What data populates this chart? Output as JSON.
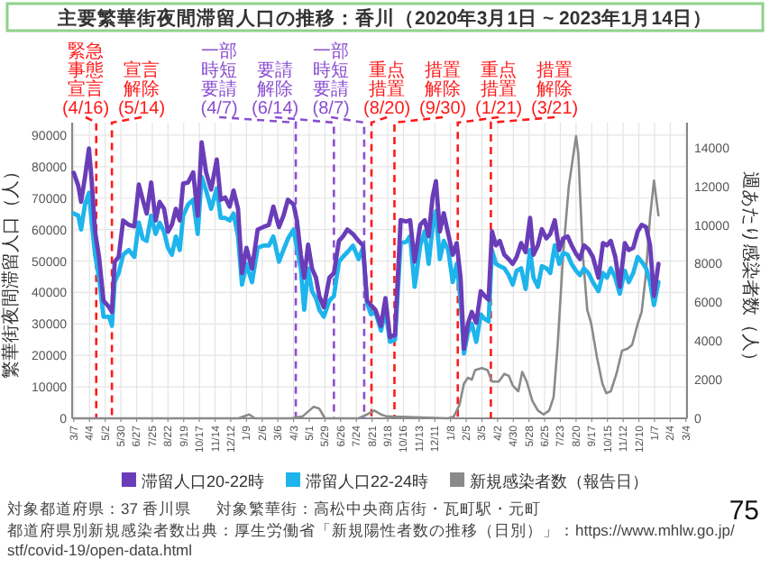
{
  "chart_data": {
    "type": "line",
    "title": "主要繁華街夜間滞留人口の推移：香川（2020年3月1日 ~ 2023年1月14日）",
    "ylabel": "繁華街夜間滞留人口（人）",
    "y2label": "週あたり感染者数（人）",
    "x": [
      "2020-03-07",
      "2020-03-15",
      "2020-03-20",
      "2020-03-27",
      "2020-04-03",
      "2020-04-08",
      "2020-04-14",
      "2020-04-21",
      "2020-04-29",
      "2020-05-09",
      "2020-05-14",
      "2020-05-19",
      "2020-05-26",
      "2020-06-03",
      "2020-06-13",
      "2020-06-23",
      "2020-07-01",
      "2020-07-08",
      "2020-07-15",
      "2020-07-23",
      "2020-07-31",
      "2020-08-07",
      "2020-08-15",
      "2020-08-22",
      "2020-08-29",
      "2020-09-05",
      "2020-09-12",
      "2020-09-18",
      "2020-09-27",
      "2020-10-06",
      "2020-10-14",
      "2020-10-21",
      "2020-10-29",
      "2020-11-07",
      "2020-11-17",
      "2020-11-24",
      "2020-12-02",
      "2020-12-10",
      "2020-12-17",
      "2020-12-25",
      "2021-01-01",
      "2021-01-09",
      "2021-01-19",
      "2021-01-29",
      "2021-02-08",
      "2021-02-18",
      "2021-02-26",
      "2021-03-08",
      "2021-03-16",
      "2021-03-24",
      "2021-04-03",
      "2021-04-09",
      "2021-04-16",
      "2021-04-22",
      "2021-04-29",
      "2021-05-06",
      "2021-05-13",
      "2021-05-19",
      "2021-05-27",
      "2021-06-06",
      "2021-06-14",
      "2021-06-23",
      "2021-06-30",
      "2021-07-08",
      "2021-07-18",
      "2021-07-28",
      "2021-08-05",
      "2021-08-12",
      "2021-08-19",
      "2021-08-27",
      "2021-09-06",
      "2021-09-14",
      "2021-09-22",
      "2021-10-01",
      "2021-10-11",
      "2021-10-21",
      "2021-10-28",
      "2021-11-05",
      "2021-11-15",
      "2021-11-23",
      "2021-11-30",
      "2021-12-07",
      "2021-12-13",
      "2021-12-20",
      "2021-12-27",
      "2022-01-04",
      "2022-01-12",
      "2022-01-19",
      "2022-01-26",
      "2022-02-01",
      "2022-02-08",
      "2022-02-15",
      "2022-02-23",
      "2022-03-03",
      "2022-03-10",
      "2022-03-17",
      "2022-03-23",
      "2022-03-30",
      "2022-04-06",
      "2022-04-14",
      "2022-04-22",
      "2022-04-29",
      "2022-05-06",
      "2022-05-14",
      "2022-05-22",
      "2022-05-30",
      "2022-06-05",
      "2022-06-13",
      "2022-06-20",
      "2022-06-28",
      "2022-07-05",
      "2022-07-13",
      "2022-07-21",
      "2022-07-28",
      "2022-08-05",
      "2022-08-12",
      "2022-08-20",
      "2022-08-27",
      "2022-09-03",
      "2022-09-11",
      "2022-09-19",
      "2022-09-29",
      "2022-10-07",
      "2022-10-14",
      "2022-10-21",
      "2022-10-29",
      "2022-11-06",
      "2022-11-15",
      "2022-11-22",
      "2022-11-30",
      "2022-12-08",
      "2022-12-15",
      "2022-12-23",
      "2022-12-30",
      "2023-01-06",
      "2023-01-14"
    ],
    "series": [
      {
        "name": "滞留人口20-22時",
        "color": "#6a3db8",
        "values": [
          78000,
          73900,
          68800,
          76800,
          85800,
          75300,
          59300,
          51300,
          37400,
          35300,
          33800,
          49800,
          51300,
          62900,
          61500,
          61000,
          74300,
          69500,
          65100,
          75000,
          62900,
          68800,
          66600,
          59300,
          61500,
          66600,
          62900,
          74600,
          75000,
          78200,
          64400,
          87700,
          78200,
          72700,
          82300,
          69500,
          70200,
          67300,
          72400,
          66600,
          46200,
          54200,
          47600,
          60000,
          60800,
          61500,
          67300,
          60800,
          64400,
          69500,
          68000,
          62900,
          52000,
          44700,
          55200,
          47600,
          44700,
          38900,
          35300,
          44700,
          46200,
          56400,
          57800,
          60000,
          58600,
          56400,
          54900,
          37400,
          36000,
          34500,
          29400,
          38200,
          25800,
          26500,
          63000,
          62600,
          63000,
          49800,
          61500,
          63000,
          57900,
          70300,
          75400,
          59400,
          65200,
          58600,
          52000,
          55700,
          44700,
          22100,
          30100,
          33800,
          30400,
          40400,
          38900,
          37700,
          59400,
          55000,
          56400,
          52000,
          50600,
          49100,
          51300,
          55700,
          52800,
          63700,
          52000,
          55000,
          60100,
          57200,
          58600,
          63000,
          53500,
          57200,
          57800,
          55000,
          52300,
          50600,
          55000,
          53800,
          51300,
          44700,
          55700,
          55000,
          56400,
          51300,
          41800,
          55700,
          53500,
          54200,
          59400,
          61500,
          60800,
          55000,
          38900,
          49100
        ]
      },
      {
        "name": "滞留人口22-24時",
        "color": "#1eb4ec",
        "values": [
          65100,
          64400,
          60000,
          68000,
          71700,
          62200,
          52000,
          44700,
          32300,
          32300,
          29400,
          43300,
          46200,
          52000,
          53500,
          51300,
          62200,
          57100,
          56400,
          64400,
          58600,
          62200,
          59300,
          54200,
          52000,
          57800,
          53500,
          64400,
          68000,
          69500,
          58600,
          76800,
          72400,
          66600,
          73100,
          63700,
          63700,
          62900,
          65100,
          57800,
          42500,
          49100,
          43300,
          54200,
          54900,
          54900,
          57800,
          49800,
          53500,
          57100,
          60000,
          54200,
          47600,
          34500,
          47600,
          40400,
          38200,
          34500,
          32300,
          37400,
          38900,
          49800,
          51300,
          52800,
          54900,
          50600,
          54200,
          36700,
          33100,
          33800,
          27900,
          34500,
          24300,
          25000,
          55700,
          56100,
          57900,
          41800,
          55000,
          59400,
          49100,
          60800,
          65900,
          50600,
          56400,
          53500,
          43300,
          49100,
          37400,
          20600,
          27200,
          30100,
          24300,
          33000,
          31600,
          30800,
          53500,
          49100,
          48400,
          47700,
          45500,
          42500,
          46900,
          47700,
          41100,
          53500,
          44700,
          41800,
          48400,
          47700,
          46200,
          55000,
          49100,
          52600,
          52000,
          49100,
          46900,
          45500,
          47700,
          46200,
          43300,
          40400,
          46200,
          44700,
          47700,
          44700,
          39600,
          46900,
          43300,
          46200,
          51300,
          49800,
          47700,
          43300,
          36000,
          43300
        ]
      },
      {
        "name": "新規感染者数（報告日）",
        "color": "#8a8a8a",
        "axis": "y2",
        "x": [
          "2020-03-07",
          "2020-12-26",
          "2021-01-14",
          "2021-01-24",
          "2021-03-30",
          "2021-04-19",
          "2021-05-09",
          "2021-05-19",
          "2021-05-29",
          "2021-07-28",
          "2021-08-12",
          "2021-08-25",
          "2021-09-06",
          "2021-09-16",
          "2022-01-04",
          "2022-01-14",
          "2022-01-24",
          "2022-02-01",
          "2022-02-08",
          "2022-02-15",
          "2022-02-21",
          "2022-03-05",
          "2022-03-15",
          "2022-03-23",
          "2022-04-04",
          "2022-04-14",
          "2022-04-22",
          "2022-04-29",
          "2022-05-09",
          "2022-05-16",
          "2022-05-24",
          "2022-06-03",
          "2022-06-13",
          "2022-06-23",
          "2022-07-03",
          "2022-07-11",
          "2022-07-18",
          "2022-07-28",
          "2022-08-07",
          "2022-08-20",
          "2022-08-24",
          "2022-09-01",
          "2022-09-09",
          "2022-09-16",
          "2022-09-26",
          "2022-10-06",
          "2022-10-13",
          "2022-10-21",
          "2022-10-31",
          "2022-11-10",
          "2022-11-20",
          "2022-11-28",
          "2022-12-08",
          "2022-12-15",
          "2022-12-22",
          "2022-12-30",
          "2023-01-06",
          "2023-01-14"
        ],
        "values": [
          0,
          0,
          200,
          0,
          0,
          100,
          600,
          500,
          0,
          0,
          200,
          400,
          200,
          100,
          0,
          100,
          700,
          1800,
          2100,
          2000,
          2500,
          2600,
          2500,
          1900,
          1900,
          2300,
          2200,
          1700,
          1400,
          2400,
          1900,
          900,
          400,
          200,
          400,
          1100,
          3700,
          8500,
          12000,
          14600,
          13700,
          8500,
          5600,
          4900,
          3200,
          1800,
          1300,
          1400,
          2300,
          3500,
          3600,
          3800,
          4900,
          5500,
          7300,
          10400,
          12300,
          10500
        ]
      }
    ],
    "xlim": [
      "2020-03-04",
      "2023-03-06"
    ],
    "xticks": [
      {
        "value": "2020-03-07",
        "label": "3/7"
      },
      {
        "value": "2020-04-04",
        "label": "4/4"
      },
      {
        "value": "2020-05-02",
        "label": "5/2"
      },
      {
        "value": "2020-05-30",
        "label": "5/30"
      },
      {
        "value": "2020-06-27",
        "label": "6/27"
      },
      {
        "value": "2020-07-25",
        "label": "7/25"
      },
      {
        "value": "2020-08-22",
        "label": "8/22"
      },
      {
        "value": "2020-09-19",
        "label": "9/19"
      },
      {
        "value": "2020-10-17",
        "label": "10/17"
      },
      {
        "value": "2020-11-14",
        "label": "11/14"
      },
      {
        "value": "2020-12-12",
        "label": "12/12"
      },
      {
        "value": "2021-01-09",
        "label": "1/9"
      },
      {
        "value": "2021-02-06",
        "label": "2/6"
      },
      {
        "value": "2021-03-06",
        "label": "3/6"
      },
      {
        "value": "2021-04-03",
        "label": "4/3"
      },
      {
        "value": "2021-05-01",
        "label": "5/1"
      },
      {
        "value": "2021-05-29",
        "label": "5/29"
      },
      {
        "value": "2021-06-26",
        "label": "6/26"
      },
      {
        "value": "2021-07-24",
        "label": "7/24"
      },
      {
        "value": "2021-08-21",
        "label": "8/21"
      },
      {
        "value": "2021-09-18",
        "label": "9/18"
      },
      {
        "value": "2021-10-16",
        "label": "10/16"
      },
      {
        "value": "2021-11-13",
        "label": "11/13"
      },
      {
        "value": "2021-12-11",
        "label": "12/11"
      },
      {
        "value": "2022-01-08",
        "label": "1/8"
      },
      {
        "value": "2022-02-05",
        "label": "2/5"
      },
      {
        "value": "2022-03-05",
        "label": "3/5"
      },
      {
        "value": "2022-04-02",
        "label": "4/2"
      },
      {
        "value": "2022-04-30",
        "label": "4/30"
      },
      {
        "value": "2022-05-28",
        "label": "5/28"
      },
      {
        "value": "2022-06-25",
        "label": "6/25"
      },
      {
        "value": "2022-07-23",
        "label": "7/23"
      },
      {
        "value": "2022-08-20",
        "label": "8/20"
      },
      {
        "value": "2022-09-17",
        "label": "9/17"
      },
      {
        "value": "2022-10-15",
        "label": "10/15"
      },
      {
        "value": "2022-11-12",
        "label": "11/12"
      },
      {
        "value": "2022-12-10",
        "label": "12/10"
      },
      {
        "value": "2023-01-07",
        "label": "1/7"
      },
      {
        "value": "2023-02-04",
        "label": "2/4"
      },
      {
        "value": "2023-03-04",
        "label": "3/4"
      }
    ],
    "ylim": [
      0,
      94000
    ],
    "yticks": [
      0,
      10000,
      20000,
      30000,
      40000,
      50000,
      60000,
      70000,
      80000,
      90000
    ],
    "y2lim": [
      0,
      15300
    ],
    "y2ticks": [
      0,
      2000,
      4000,
      6000,
      8000,
      10000,
      12000,
      14000
    ],
    "ref_lines": [
      {
        "axis": "x",
        "value": "2020-04-16",
        "label": "緊急事態宣言(4/16)",
        "color": "#ff1a1a",
        "line_style": "dashed"
      },
      {
        "axis": "x",
        "value": "2020-05-14",
        "label": "宣言解除(5/14)",
        "color": "#ff1a1a",
        "line_style": "dashed"
      },
      {
        "axis": "x",
        "value": "2021-04-07",
        "label": "一部時短要請(4/7)",
        "color": "#8a4fd0",
        "line_style": "dashed"
      },
      {
        "axis": "x",
        "value": "2021-06-14",
        "label": "要請解除(6/14)",
        "color": "#8a4fd0",
        "line_style": "dashed"
      },
      {
        "axis": "x",
        "value": "2021-08-07",
        "label": "一部時短要請(8/7)",
        "color": "#8a4fd0",
        "line_style": "dashed"
      },
      {
        "axis": "x",
        "value": "2021-08-20",
        "label": "重点措置(8/20)",
        "color": "#ff1a1a",
        "line_style": "dashed"
      },
      {
        "axis": "x",
        "value": "2021-09-30",
        "label": "措置解除(9/30)",
        "color": "#ff1a1a",
        "line_style": "dashed"
      },
      {
        "axis": "x",
        "value": "2022-01-21",
        "label": "重点措置(1/21)",
        "color": "#ff1a1a",
        "line_style": "dashed"
      },
      {
        "axis": "x",
        "value": "2022-03-21",
        "label": "措置解除(3/21)",
        "color": "#ff1a1a",
        "line_style": "dashed"
      }
    ],
    "annotations": [
      "対象都道府県：37 香川県",
      "対象繁華街：高松中央商店街・瓦町駅・元町",
      "都道府県別新規感染者数出典：厚生労働省「新規陽性者数の推移（日別）」：https://www.mhlw.go.jp/stf/covid-19/open-data.html",
      "75"
    ],
    "grid": true,
    "legend": "bottom",
    "marker": "none",
    "line_style": "solid"
  }
}
